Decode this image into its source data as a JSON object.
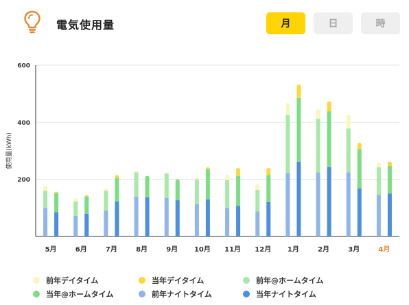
{
  "header": {
    "title": "電気使用量",
    "tabs": [
      {
        "label": "月",
        "active": true
      },
      {
        "label": "日",
        "active": false
      },
      {
        "label": "時",
        "active": false
      }
    ]
  },
  "colors": {
    "accent": "#ffd400",
    "prev_day": "#fcf5c0",
    "curr_day": "#fcd93a",
    "prev_home": "#a9e8ab",
    "curr_home": "#7ddd83",
    "prev_night": "#8fb6ea",
    "curr_night": "#4c8fe0",
    "highlight_label": "#e8852a"
  },
  "chart_data": {
    "type": "bar",
    "stacked": true,
    "ylabel": "使用量(kWh)",
    "ylim": [
      0,
      600
    ],
    "yticks": [
      200,
      400,
      600
    ],
    "categories": [
      "5月",
      "6月",
      "7月",
      "8月",
      "9月",
      "10月",
      "11月",
      "12月",
      "1月",
      "2月",
      "3月",
      "4月"
    ],
    "highlight_category": "4月",
    "series": [
      {
        "name": "前年ナイトタイム",
        "group": "previous",
        "layer": "night",
        "values": [
          100,
          72,
          90,
          140,
          135,
          113,
          100,
          88,
          222,
          225,
          225,
          145
        ]
      },
      {
        "name": "前年@ホームタイム",
        "group": "previous",
        "layer": "home",
        "values": [
          60,
          50,
          70,
          85,
          85,
          87,
          97,
          75,
          203,
          187,
          153,
          97
        ]
      },
      {
        "name": "前年デイタイム",
        "group": "previous",
        "layer": "day",
        "values": [
          18,
          13,
          8,
          5,
          5,
          5,
          20,
          22,
          42,
          33,
          47,
          17
        ]
      },
      {
        "name": "当年ナイトタイム",
        "group": "current",
        "layer": "night",
        "values": [
          85,
          80,
          123,
          137,
          127,
          130,
          107,
          120,
          262,
          243,
          168,
          150
        ]
      },
      {
        "name": "当年@ホームタイム",
        "group": "current",
        "layer": "home",
        "values": [
          67,
          60,
          82,
          75,
          73,
          105,
          105,
          95,
          223,
          195,
          137,
          97
        ]
      },
      {
        "name": "当年デイタイム",
        "group": "current",
        "layer": "day",
        "values": [
          5,
          5,
          10,
          0,
          0,
          7,
          28,
          25,
          47,
          35,
          23,
          15
        ]
      }
    ]
  },
  "legend": [
    {
      "label": "前年デイタイム",
      "color_key": "prev_day"
    },
    {
      "label": "当年デイタイム",
      "color_key": "curr_day"
    },
    {
      "label": "前年@ホームタイム",
      "color_key": "prev_home"
    },
    {
      "label": "当年@ホームタイム",
      "color_key": "curr_home"
    },
    {
      "label": "前年ナイトタイム",
      "color_key": "prev_night"
    },
    {
      "label": "当年ナイトタイム",
      "color_key": "curr_night"
    }
  ]
}
